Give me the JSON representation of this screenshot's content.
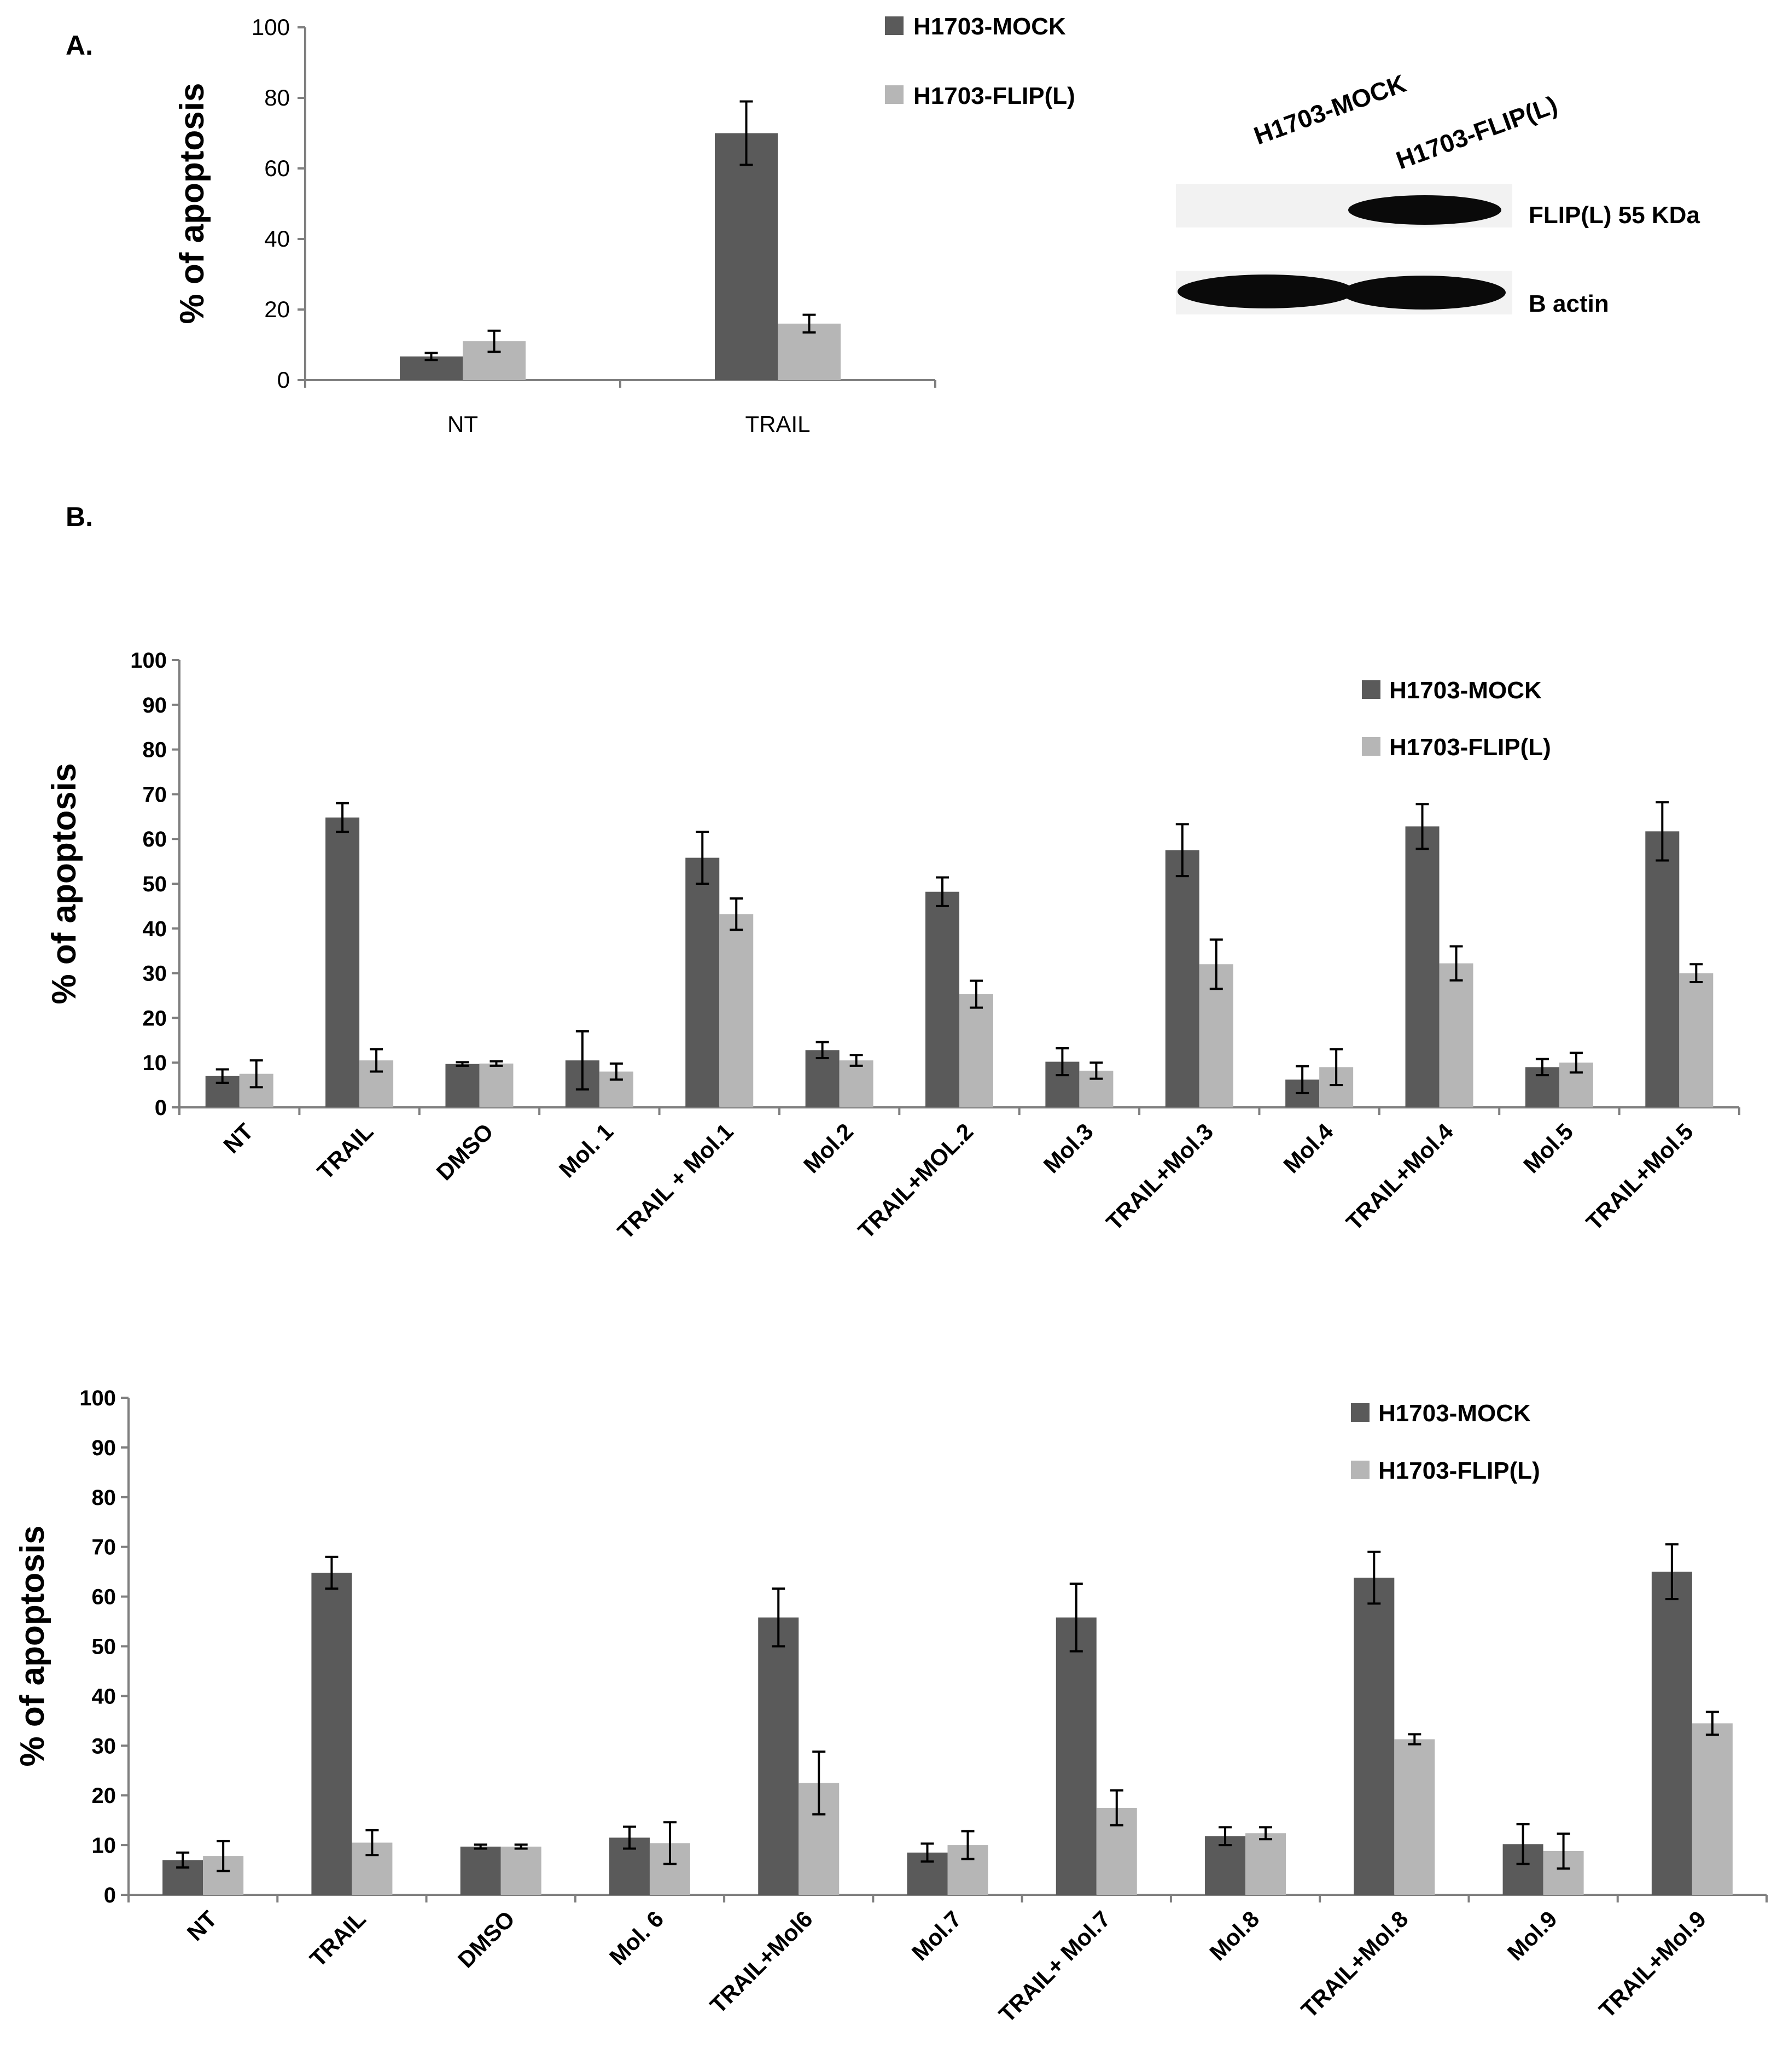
{
  "panel_labels": {
    "a": "A.",
    "b": "B."
  },
  "colors": {
    "mock": "#5a5a5a",
    "flip": "#b6b6b6",
    "axis": "#7f7f7f",
    "blot_bg": "#f2f2f2",
    "blot_band": "#0a0a0a"
  },
  "legend": {
    "mock": "H1703-MOCK",
    "flip": "H1703-FLIP(L)"
  },
  "blot": {
    "lane_labels": [
      "H1703-MOCK",
      "H1703-FLIP(L)"
    ],
    "band_labels": [
      "FLIP(L) 55 KDa",
      "B actin"
    ]
  },
  "chart_data": [
    {
      "type": "bar",
      "panel": "A.",
      "ylabel": "% of apoptosis",
      "ylim": [
        0,
        100
      ],
      "yticks": [
        0,
        20,
        40,
        60,
        80,
        100
      ],
      "categories": [
        "NT",
        "TRAIL"
      ],
      "series": [
        {
          "name": "H1703-MOCK",
          "values": [
            6.7,
            70
          ],
          "errors": [
            1.0,
            9
          ]
        },
        {
          "name": "H1703-FLIP(L)",
          "values": [
            11,
            16
          ],
          "errors": [
            3,
            2.5
          ]
        }
      ]
    },
    {
      "type": "bar",
      "panel": "B.",
      "ylabel": "% of apoptosis",
      "ylim": [
        0,
        100
      ],
      "yticks": [
        0,
        10,
        20,
        30,
        40,
        50,
        60,
        70,
        80,
        90,
        100
      ],
      "categories": [
        "NT",
        "TRAIL",
        "DMSO",
        "Mol. 1",
        "TRAIL + Mol.1",
        "Mol.2",
        "TRAIL+MOL.2",
        "Mol.3",
        "TRAIL+Mol.3",
        "Mol.4",
        "TRAIL+Mol.4",
        "Mol.5",
        "TRAIL+Mol.5"
      ],
      "series": [
        {
          "name": "H1703-MOCK",
          "values": [
            7,
            64.8,
            9.7,
            10.5,
            55.8,
            12.8,
            48.2,
            10.2,
            57.5,
            6.2,
            62.8,
            9,
            61.7
          ],
          "errors": [
            1.5,
            3.2,
            0.4,
            6.5,
            5.8,
            1.8,
            3.2,
            3,
            5.8,
            3,
            5,
            1.8,
            6.5
          ]
        },
        {
          "name": "H1703-FLIP(L)",
          "values": [
            7.5,
            10.5,
            9.8,
            8,
            43.2,
            10.5,
            25.3,
            8.2,
            32,
            9,
            32.2,
            10,
            30
          ],
          "errors": [
            3,
            2.5,
            0.5,
            1.8,
            3.5,
            1.2,
            3,
            1.8,
            5.5,
            4,
            3.8,
            2.2,
            2
          ]
        }
      ]
    },
    {
      "type": "bar",
      "ylabel": "% of apoptosis",
      "ylim": [
        0,
        100
      ],
      "yticks": [
        0,
        10,
        20,
        30,
        40,
        50,
        60,
        70,
        80,
        90,
        100
      ],
      "categories": [
        "NT",
        "TRAIL",
        "DMSO",
        "Mol. 6",
        "TRAIL+Mol6",
        "Mol.7",
        "TRAIL+ Mol.7",
        "Mol.8",
        "TRAIL+Mol.8",
        "Mol.9",
        "TRAIL+Mol.9"
      ],
      "series": [
        {
          "name": "H1703-MOCK",
          "values": [
            7,
            64.8,
            9.7,
            11.5,
            55.8,
            8.5,
            55.8,
            11.8,
            63.8,
            10.2,
            65
          ],
          "errors": [
            1.5,
            3.2,
            0.4,
            2.2,
            5.8,
            1.8,
            6.8,
            1.8,
            5.2,
            4,
            5.5
          ]
        },
        {
          "name": "H1703-FLIP(L)",
          "values": [
            7.8,
            10.5,
            9.7,
            10.4,
            22.5,
            10,
            17.5,
            12.4,
            31.3,
            8.8,
            34.5
          ],
          "errors": [
            3,
            2.5,
            0.4,
            4.2,
            6.3,
            2.8,
            3.5,
            1.2,
            1,
            3.5,
            2.3
          ]
        }
      ]
    }
  ]
}
